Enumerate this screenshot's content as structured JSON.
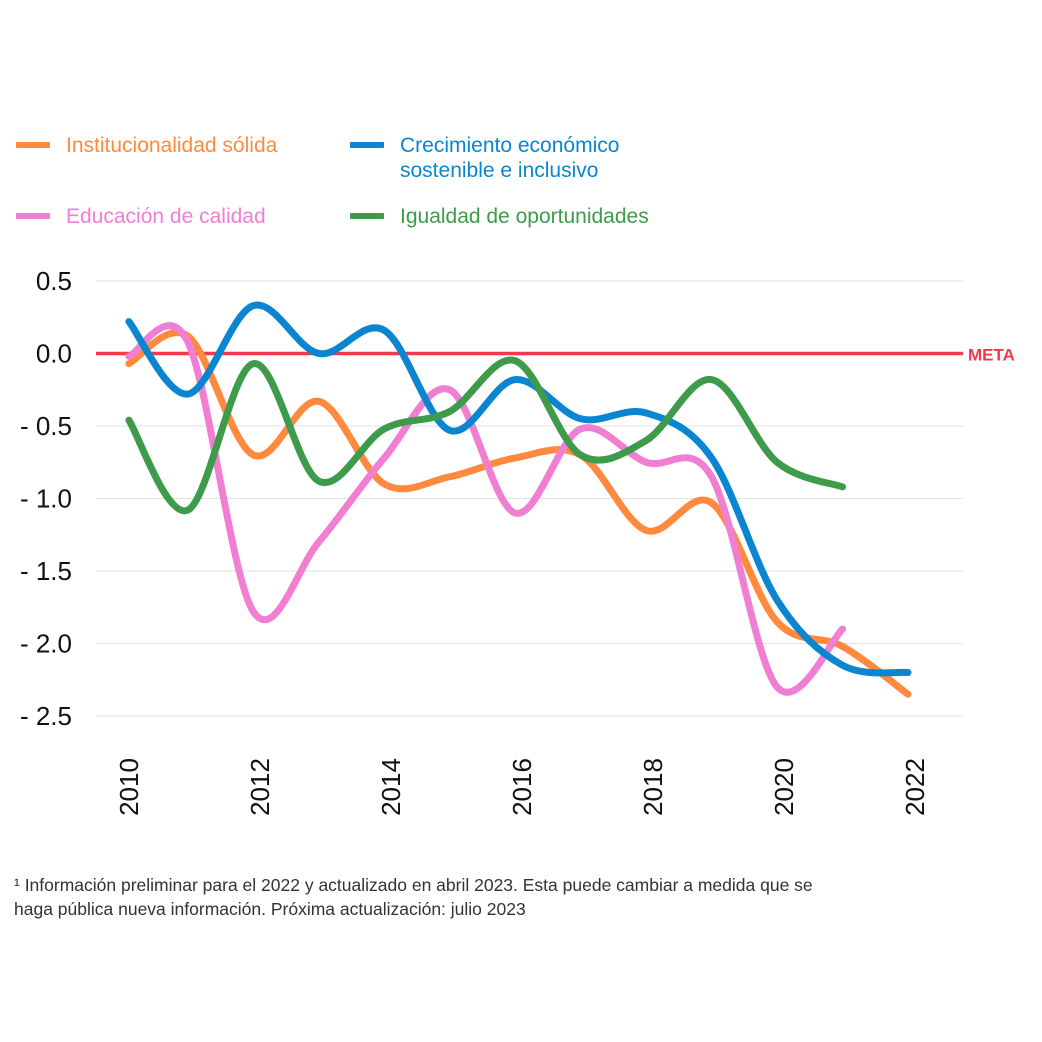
{
  "legend": [
    {
      "label": "Institucionalidad sólida",
      "color": "#FF8A3D"
    },
    {
      "label": "Crecimiento económico\nsostenible e inclusivo",
      "color": "#0A86D1"
    },
    {
      "label": "Educación de calidad",
      "color": "#F07FD3"
    },
    {
      "label": "Igualdad de oportunidades",
      "color": "#3E9B4B"
    }
  ],
  "footnote": "¹ Información preliminar para el 2022 y actualizado en abril 2023. Esta puede cambiar a medida que se\n haga pública nueva información. Próxima actualización: julio 2023",
  "colors": {
    "meta": "#F0394A",
    "grid": "#E2E2E2",
    "axis_text": "#111111"
  },
  "chart_data": {
    "type": "line",
    "title": "",
    "xlabel": "",
    "ylabel": "",
    "xlim": [
      2009.75,
      2022.55
    ],
    "ylim": [
      -2.5,
      0.5
    ],
    "x_ticks": [
      2010,
      2012,
      2014,
      2016,
      2018,
      2020,
      2022
    ],
    "y_ticks": [
      {
        "value": 0.5,
        "label": "0.5"
      },
      {
        "value": 0.0,
        "label": "0.0"
      },
      {
        "value": -0.5,
        "label": "- 0.5"
      },
      {
        "value": -1.0,
        "label": "- 1.0"
      },
      {
        "value": -1.5,
        "label": "- 1.5"
      },
      {
        "value": -2.0,
        "label": "- 2.0"
      },
      {
        "value": -2.5,
        "label": "- 2.5"
      }
    ],
    "reference_line": {
      "value": 0.0,
      "label": "META"
    },
    "grid": true,
    "legend_position": "top",
    "series": [
      {
        "name": "Institucionalidad sólida",
        "color": "#FF8A3D",
        "x": [
          2010.1,
          2011,
          2012,
          2013,
          2014,
          2015,
          2016,
          2017,
          2018,
          2019,
          2020,
          2021,
          2022
        ],
        "values": [
          -0.07,
          0.12,
          -0.7,
          -0.33,
          -0.9,
          -0.85,
          -0.72,
          -0.7,
          -1.22,
          -1.03,
          -1.85,
          -2.02,
          -2.35
        ]
      },
      {
        "name": "Crecimiento económico\nsostenible e inclusivo",
        "color": "#0A86D1",
        "x": [
          2010.1,
          2011,
          2012,
          2013,
          2014,
          2015,
          2016,
          2017,
          2018,
          2019,
          2020,
          2021,
          2022
        ],
        "values": [
          0.22,
          -0.28,
          0.33,
          0.0,
          0.16,
          -0.53,
          -0.18,
          -0.45,
          -0.41,
          -0.72,
          -1.7,
          -2.15,
          -2.2
        ]
      },
      {
        "name": "Educación de calidad",
        "color": "#F07FD3",
        "x": [
          2010.1,
          2011,
          2012,
          2013,
          2014,
          2015,
          2016,
          2017,
          2018,
          2019,
          2020,
          2021
        ],
        "values": [
          -0.02,
          0.08,
          -1.78,
          -1.3,
          -0.72,
          -0.25,
          -1.1,
          -0.52,
          -0.75,
          -0.85,
          -2.3,
          -1.9
        ]
      },
      {
        "name": "Igualdad de oportunidades",
        "color": "#3E9B4B",
        "x": [
          2010.1,
          2011,
          2012,
          2013,
          2014,
          2015,
          2016,
          2017,
          2018,
          2019,
          2020,
          2021
        ],
        "values": [
          -0.46,
          -1.08,
          -0.07,
          -0.88,
          -0.52,
          -0.4,
          -0.05,
          -0.7,
          -0.6,
          -0.18,
          -0.75,
          -0.92
        ]
      }
    ]
  }
}
